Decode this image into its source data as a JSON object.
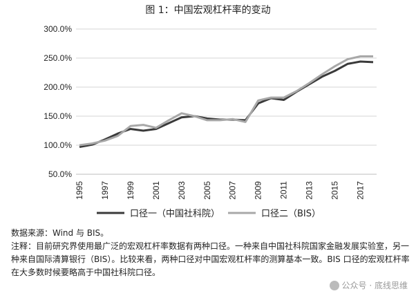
{
  "title": "图 1：中国宏观杠杆率的变动",
  "chart_data": {
    "type": "line",
    "x": [
      1995,
      1996,
      1997,
      1998,
      1999,
      2000,
      2001,
      2002,
      2003,
      2004,
      2005,
      2006,
      2007,
      2008,
      2009,
      2010,
      2011,
      2012,
      2013,
      2014,
      2015,
      2016,
      2017,
      2018
    ],
    "x_tick_labels": [
      "1995",
      "1997",
      "1999",
      "2001",
      "2003",
      "2005",
      "2007",
      "2009",
      "2011",
      "2013",
      "2015",
      "2017"
    ],
    "y_tick_labels": [
      "50.0%",
      "100.0%",
      "150.0%",
      "200.0%",
      "250.0%",
      "300.0%"
    ],
    "ylim": [
      50,
      300
    ],
    "grid": "horizontal",
    "legend_position": "bottom",
    "series": [
      {
        "name": "口径一（中国社科院）",
        "color": "#3a3a3a",
        "values": [
          97,
          101,
          110,
          120,
          128,
          125,
          128,
          138,
          148,
          150,
          146,
          144,
          144,
          143,
          172,
          181,
          178,
          192,
          205,
          218,
          228,
          240,
          244,
          243
        ]
      },
      {
        "name": "口径二（BIS）",
        "color": "#a8a8a8",
        "values": [
          100,
          103,
          108,
          116,
          133,
          135,
          130,
          143,
          155,
          150,
          143,
          143,
          145,
          140,
          177,
          182,
          182,
          193,
          207,
          222,
          236,
          248,
          253,
          253
        ]
      }
    ]
  },
  "notes": {
    "source": "数据来源：Wind 与 BIS。",
    "footnote": "注释：目前研究界使用最广泛的宏观杠杆率数据有两种口径。一种来自中国社科院国家金融发展实验室，另一种来自国际清算银行（BIS）。比较来看，两种口径对中国宏观杠杆率的测算基本一致。BIS 口径的宏观杠杆率在大多数时候要略高于中国社科院口径。"
  },
  "watermark": "公众号 · 底线思维"
}
